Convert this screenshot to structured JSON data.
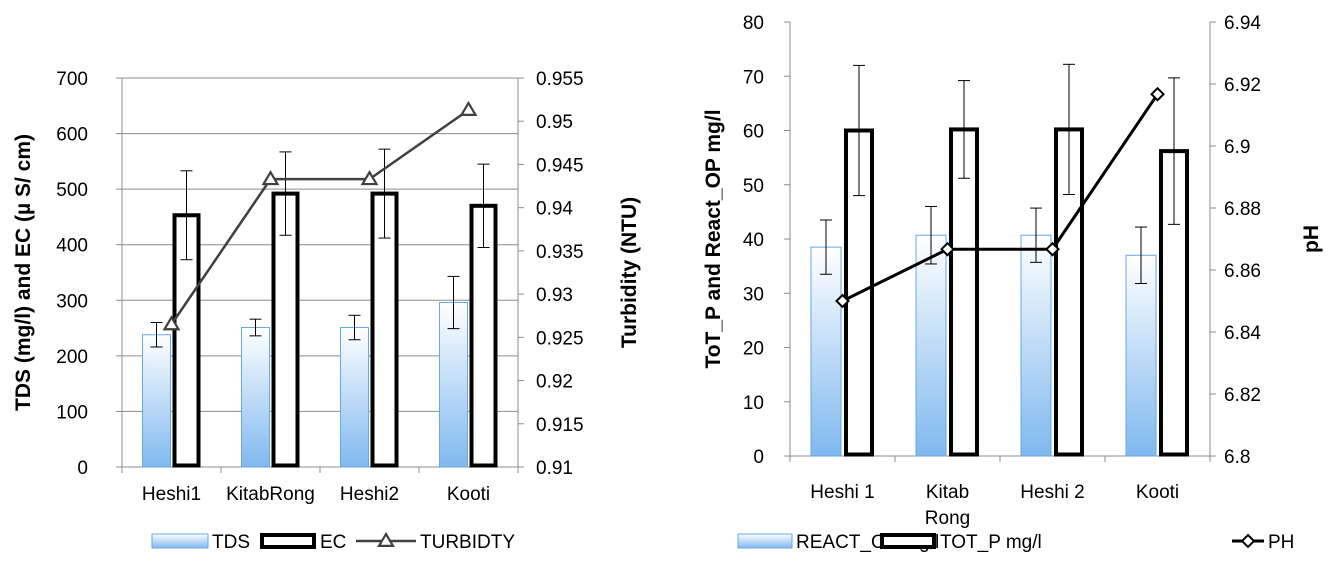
{
  "chart_data": [
    {
      "type": "bar",
      "categories": [
        "Heshi1",
        "KitabRong",
        "Heshi2",
        "Kooti"
      ],
      "series": [
        {
          "name": "TDS",
          "kind": "bar",
          "axis": "left",
          "values": [
            238,
            251,
            251,
            296
          ],
          "error": [
            22,
            15,
            22,
            47
          ],
          "color": "#9ecbf5"
        },
        {
          "name": "EC",
          "kind": "bar",
          "axis": "left",
          "values": [
            453,
            492,
            492,
            470
          ],
          "error": [
            80,
            75,
            80,
            75
          ],
          "color": "#ffffff"
        },
        {
          "name": "TURBIDTY",
          "kind": "line",
          "axis": "right",
          "marker": "triangle",
          "values": [
            0.9265,
            0.9433,
            0.9433,
            0.9513
          ],
          "color": "#404040"
        }
      ],
      "ylabel": "TDS  (mg/l) and EC (µ S/ cm)",
      "y2label": "Turbidity (NTU)",
      "ylim": [
        0,
        700
      ],
      "y2lim": [
        0.91,
        0.955
      ],
      "yticks": [
        "0",
        "100",
        "200",
        "300",
        "400",
        "500",
        "600",
        "700"
      ],
      "y2ticks": [
        "0.91",
        "0.915",
        "0.92",
        "0.925",
        "0.93",
        "0.935",
        "0.94",
        "0.945",
        "0.95",
        "0.955"
      ],
      "grid": true,
      "legend": "bottom"
    },
    {
      "type": "bar",
      "categories": [
        "Heshi 1",
        "Kitab Rong",
        "Heshi 2",
        "Kooti"
      ],
      "category_lines": [
        [
          "Heshi 1"
        ],
        [
          "Kitab",
          "Rong"
        ],
        [
          "Heshi 2"
        ],
        [
          "Kooti"
        ]
      ],
      "series": [
        {
          "name": "REACT_OP mg/l",
          "kind": "bar",
          "axis": "left",
          "values": [
            38.5,
            40.7,
            40.7,
            37
          ],
          "error": [
            5,
            5.3,
            5,
            5.2
          ],
          "color": "#9ecbf5"
        },
        {
          "name": "TOT_P mg/l",
          "kind": "bar",
          "axis": "left",
          "values": [
            60,
            60.2,
            60.2,
            56.2
          ],
          "error": [
            12,
            9,
            12,
            13.5
          ],
          "color": "#ffffff"
        },
        {
          "name": "PH",
          "kind": "line",
          "axis": "right",
          "marker": "diamond",
          "values": [
            6.85,
            6.8667,
            6.8667,
            6.9167
          ],
          "color": "#000000"
        }
      ],
      "ylabel": "ToT_P and React_OP mg/l",
      "y2label": "pH",
      "ylim": [
        0,
        80
      ],
      "y2lim": [
        6.8,
        6.94
      ],
      "yticks": [
        "0",
        "10",
        "20",
        "30",
        "40",
        "50",
        "60",
        "70",
        "80"
      ],
      "y2ticks": [
        "6.8",
        "6.82",
        "6.84",
        "6.86",
        "6.88",
        "6.9",
        "6.92",
        "6.94"
      ],
      "grid": false,
      "legend": "bottom"
    }
  ]
}
